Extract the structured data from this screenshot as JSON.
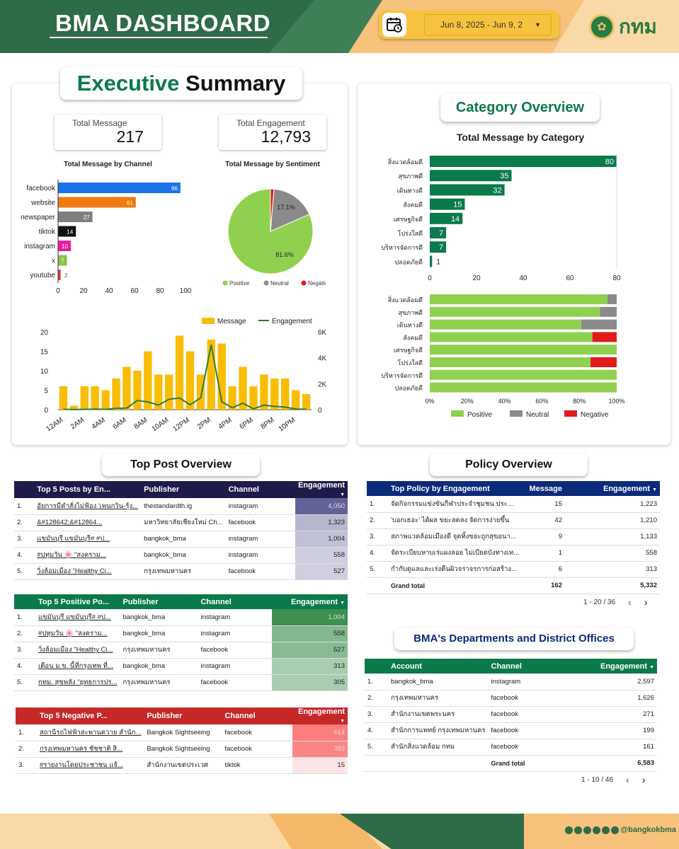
{
  "header": {
    "title": "BMA DASHBOARD",
    "date_range": "Jun 8, 2025 - Jun 9, 2",
    "logo_text": "กทม"
  },
  "executive": {
    "title_green": "Executive",
    "title_black": "Summary",
    "kpi": [
      {
        "label": "Total Message",
        "value": "217"
      },
      {
        "label": "Total Engagement",
        "value": "12,793"
      }
    ],
    "channel_title": "Total Message by Channel",
    "sentiment_title": "Total Message by Sentiment",
    "hourly_legend": {
      "message": "Message",
      "engagement": "Engagement"
    }
  },
  "category": {
    "title": "Category Overview",
    "chart_title": "Total Message by Category"
  },
  "chart_data": [
    {
      "type": "bar",
      "title": "Total Message by Channel",
      "orientation": "horizontal",
      "categories": [
        "facebook",
        "website",
        "newspaper",
        "tiktok",
        "instagram",
        "x",
        "youtube"
      ],
      "values": [
        96,
        61,
        27,
        14,
        10,
        7,
        2
      ],
      "colors": [
        "#1a73e8",
        "#f07a12",
        "#7f7f7f",
        "#111111",
        "#e91e9c",
        "#8bc34a",
        "#e53935"
      ],
      "xlim": [
        0,
        100
      ],
      "xticks": [
        0,
        20,
        40,
        60,
        80,
        100
      ]
    },
    {
      "type": "pie",
      "title": "Total Message by Sentiment",
      "categories": [
        "Positive",
        "Neutral",
        "Negative"
      ],
      "values": [
        81.6,
        17.1,
        1.3
      ],
      "labels": [
        "81.6%",
        "17.1%",
        ""
      ],
      "colors": [
        "#8fd14f",
        "#8a8a8a",
        "#e31a1c"
      ],
      "legend": "bottom"
    },
    {
      "type": "bar",
      "subtype": "bar+line",
      "categories": [
        "12AM",
        "1AM",
        "2AM",
        "3AM",
        "4AM",
        "5AM",
        "6AM",
        "7AM",
        "8AM",
        "9AM",
        "10AM",
        "11AM",
        "12PM",
        "1PM",
        "2PM",
        "3PM",
        "4PM",
        "5PM",
        "6PM",
        "7PM",
        "8PM",
        "9PM",
        "10PM",
        "11PM"
      ],
      "tick_labels": [
        "12AM",
        "2AM",
        "4AM",
        "6AM",
        "8AM",
        "10AM",
        "12PM",
        "2PM",
        "4PM",
        "6PM",
        "8PM",
        "10PM"
      ],
      "series": [
        {
          "name": "Message",
          "type": "bar",
          "axis": "left",
          "color": "#fbbc05",
          "values": [
            6,
            1,
            6,
            6,
            5,
            8,
            11,
            10,
            15,
            9,
            9,
            19,
            15,
            9,
            18,
            17,
            6,
            11,
            6,
            9,
            8,
            8,
            5,
            4
          ]
        },
        {
          "name": "Engagement",
          "type": "line",
          "axis": "right",
          "color": "#2e7d32",
          "values": [
            30,
            10,
            20,
            40,
            20,
            100,
            120,
            700,
            600,
            350,
            800,
            900,
            380,
            900,
            5000,
            600,
            150,
            500,
            60,
            350,
            250,
            200,
            50,
            30
          ]
        }
      ],
      "ylim_left": [
        0,
        20
      ],
      "yticks_left": [
        0,
        5,
        10,
        15,
        20
      ],
      "ylim_right": [
        0,
        6000
      ],
      "yticks_right": [
        "0",
        "2K",
        "4K",
        "6K"
      ],
      "legend": "top"
    },
    {
      "type": "bar",
      "title": "Total Message by Category",
      "orientation": "horizontal",
      "categories": [
        "สิ่งแวดล้อมดี",
        "สุขภาพดี",
        "เดินทางดี",
        "สังคมดี",
        "เศรษฐกิจดี",
        "โปร่งใสดี",
        "บริหารจัดการดี",
        "ปลอดภัยดี"
      ],
      "values": [
        80,
        35,
        32,
        15,
        14,
        7,
        7,
        1
      ],
      "color": "#0b7a4b",
      "xlim": [
        0,
        80
      ],
      "xticks": [
        0,
        20,
        40,
        60,
        80
      ]
    },
    {
      "type": "bar",
      "subtype": "stacked-100",
      "orientation": "horizontal",
      "categories": [
        "สิ่งแวดล้อมดี",
        "สุขภาพดี",
        "เดินทางดี",
        "สังคมดี",
        "เศรษฐกิจดี",
        "โปร่งใสดี",
        "บริหารจัดการดี",
        "ปลอดภัยดี"
      ],
      "series": [
        {
          "name": "Positive",
          "color": "#8fd14f",
          "values": [
            95,
            91,
            81,
            87,
            100,
            86,
            100,
            100
          ]
        },
        {
          "name": "Neutral",
          "color": "#8a8a8a",
          "values": [
            5,
            9,
            19,
            0,
            0,
            0,
            0,
            0
          ]
        },
        {
          "name": "Negative",
          "color": "#e31a1c",
          "values": [
            0,
            0,
            0,
            13,
            0,
            14,
            0,
            0
          ]
        }
      ],
      "xticks": [
        "0%",
        "20%",
        "40%",
        "60%",
        "80%",
        "100%"
      ],
      "legend": "bottom"
    }
  ],
  "top_post": {
    "title": "Top Post Overview",
    "headers": [
      "Top 5 Posts by En...",
      "Publisher",
      "Channel",
      "Engagement"
    ],
    "rows": [
      {
        "n": "1.",
        "post": "อัยการมีคำสั่งไม่ฟ้อง 'เพนกวิน-รุ้ง...",
        "publisher": "thestandardth.ig",
        "channel": "instagram",
        "eng": "4,050",
        "shade": 1.0
      },
      {
        "n": "2.",
        "post": "&#128642;&#12864...",
        "publisher": "มหาวิทยาลัยเชียงใหม่ Ch...",
        "channel": "facebook",
        "eng": "1,323",
        "shade": 0.33
      },
      {
        "n": "3.",
        "post": "แขมันบุรี แขมันบุรี# #ป...",
        "publisher": "bangkok_bma",
        "channel": "instagram",
        "eng": "1,004",
        "shade": 0.25
      },
      {
        "n": "4.",
        "post": "#ปทุมวัน 🌸 \"สงคราม...",
        "publisher": "bangkok_bma",
        "channel": "instagram",
        "eng": "558",
        "shade": 0.14
      },
      {
        "n": "5.",
        "post": "วิ่งล้อมเมือง \"Healthy Ci...",
        "publisher": "กรุงเทพมหานคร",
        "channel": "facebook",
        "eng": "527",
        "shade": 0.13
      }
    ]
  },
  "top_positive": {
    "headers": [
      "Top 5 Positive Po...",
      "Publisher",
      "Channel",
      "Engagement"
    ],
    "rows": [
      {
        "n": "1.",
        "post": "แขมันบุรี แขมันบุรี# #ป...",
        "publisher": "bangkok_bma",
        "channel": "instagram",
        "eng": "1,004",
        "shade": 1.0
      },
      {
        "n": "2.",
        "post": "#ปทุมวัน 🌸 \"สงคราม...",
        "publisher": "bangkok_bma",
        "channel": "instagram",
        "eng": "558",
        "shade": 0.55
      },
      {
        "n": "3.",
        "post": "วิ่งล้อมเมือง \"Healthy Ci...",
        "publisher": "กรุงเทพมหานคร",
        "channel": "facebook",
        "eng": "527",
        "shade": 0.52
      },
      {
        "n": "4.",
        "post": "เตือน ม.ข. นี้ที่กรุงเทพ ที่...",
        "publisher": "bangkok_bma",
        "channel": "instagram",
        "eng": "313",
        "shade": 0.31
      },
      {
        "n": "5.",
        "post": "กทม. สุขพลัง \"ยุทธการปร...",
        "publisher": "กรุงเทพมหานคร",
        "channel": "facebook",
        "eng": "305",
        "shade": 0.3
      }
    ]
  },
  "top_negative": {
    "headers": [
      "Top 5 Negative P...",
      "Publisher",
      "Channel",
      "Engagement"
    ],
    "rows": [
      {
        "n": "1.",
        "post": "สถานีรถไฟฟ้าสะพานควาย สำนัก...",
        "publisher": "Bangkok Sightseeing",
        "channel": "facebook",
        "eng": "414",
        "shade": 1.0
      },
      {
        "n": "2.",
        "post": "กรุงเทพมหานคร ชัชชาติ สิ...",
        "publisher": "Bangkok Sightseeing",
        "channel": "facebook",
        "eng": "383",
        "shade": 0.92
      },
      {
        "n": "3.",
        "post": "#รายงานโดยประชาชน แจ้...",
        "publisher": "สำนักงานเขตประเวศ",
        "channel": "tiktok",
        "eng": "15",
        "shade": 0.0
      }
    ]
  },
  "policy": {
    "title": "Policy Overview",
    "headers": [
      "Top Policy by Engagement",
      "Message",
      "Engagement"
    ],
    "rows": [
      {
        "n": "1.",
        "policy": "จัดกิจกรรมแข่งขันกีฬาประจำชุมชน ประ...",
        "msg": "15",
        "eng": "1,223"
      },
      {
        "n": "2.",
        "policy": "'บอกเธอะ' ได้ผล ขยะลดลง จัดการง่ายขึ้น",
        "msg": "42",
        "eng": "1,210"
      },
      {
        "n": "3.",
        "policy": "สภาพแวดล้อมเมืองดี จุดทิ้งขยะถูกสุขอนา...",
        "msg": "9",
        "eng": "1,133"
      },
      {
        "n": "4.",
        "policy": "จัดระเบียบหาบเร่แผงลอย ไม่เบียดบังทางเท...",
        "msg": "1",
        "eng": "558"
      },
      {
        "n": "5.",
        "policy": "กำกับดูแลและเร่งคืนผิวจราจรการก่อสร้าง...",
        "msg": "6",
        "eng": "313"
      }
    ],
    "total_label": "Grand total",
    "total_msg": "162",
    "total_eng": "5,332",
    "pager": "1 - 20 / 36"
  },
  "departments": {
    "title": "BMA's Departments and District Offices",
    "headers": [
      "Account",
      "Channel",
      "Engagement"
    ],
    "rows": [
      {
        "n": "1.",
        "account": "bangkok_bma",
        "channel": "instagram",
        "eng": "2,597"
      },
      {
        "n": "2.",
        "account": "กรุงเทพมหานคร",
        "channel": "facebook",
        "eng": "1,626"
      },
      {
        "n": "3.",
        "account": "สำนักงานเขตพระนคร",
        "channel": "facebook",
        "eng": "271"
      },
      {
        "n": "4.",
        "account": "สำนักการแพทย์ กรุงเทพมหานคร",
        "channel": "facebook",
        "eng": "199"
      },
      {
        "n": "5.",
        "account": "สำนักสิ่งแวดล้อม กทม",
        "channel": "facebook",
        "eng": "161"
      }
    ],
    "total_label": "Grand total",
    "total_eng": "6,583",
    "pager": "1 - 10 / 46"
  },
  "footer": {
    "handle": "@bangkokbma"
  },
  "icons": [
    "calendar-icon",
    "dropdown-caret-icon",
    "sort-desc-icon",
    "prev-page-icon",
    "next-page-icon",
    "x-social-icon",
    "facebook-icon",
    "youtube-icon",
    "instagram-icon",
    "tiktok-icon",
    "line-icon"
  ],
  "colors": {
    "header_green": "#2e6b47",
    "header_orange": "#f6c27c",
    "date_pill": "#f7c33e",
    "top_post_header": "#1e1b4b",
    "positive_header": "#0b7a4b",
    "negative_header": "#c62828",
    "policy_header": "#0b2a7a",
    "dept_header": "#0b7a4b"
  }
}
